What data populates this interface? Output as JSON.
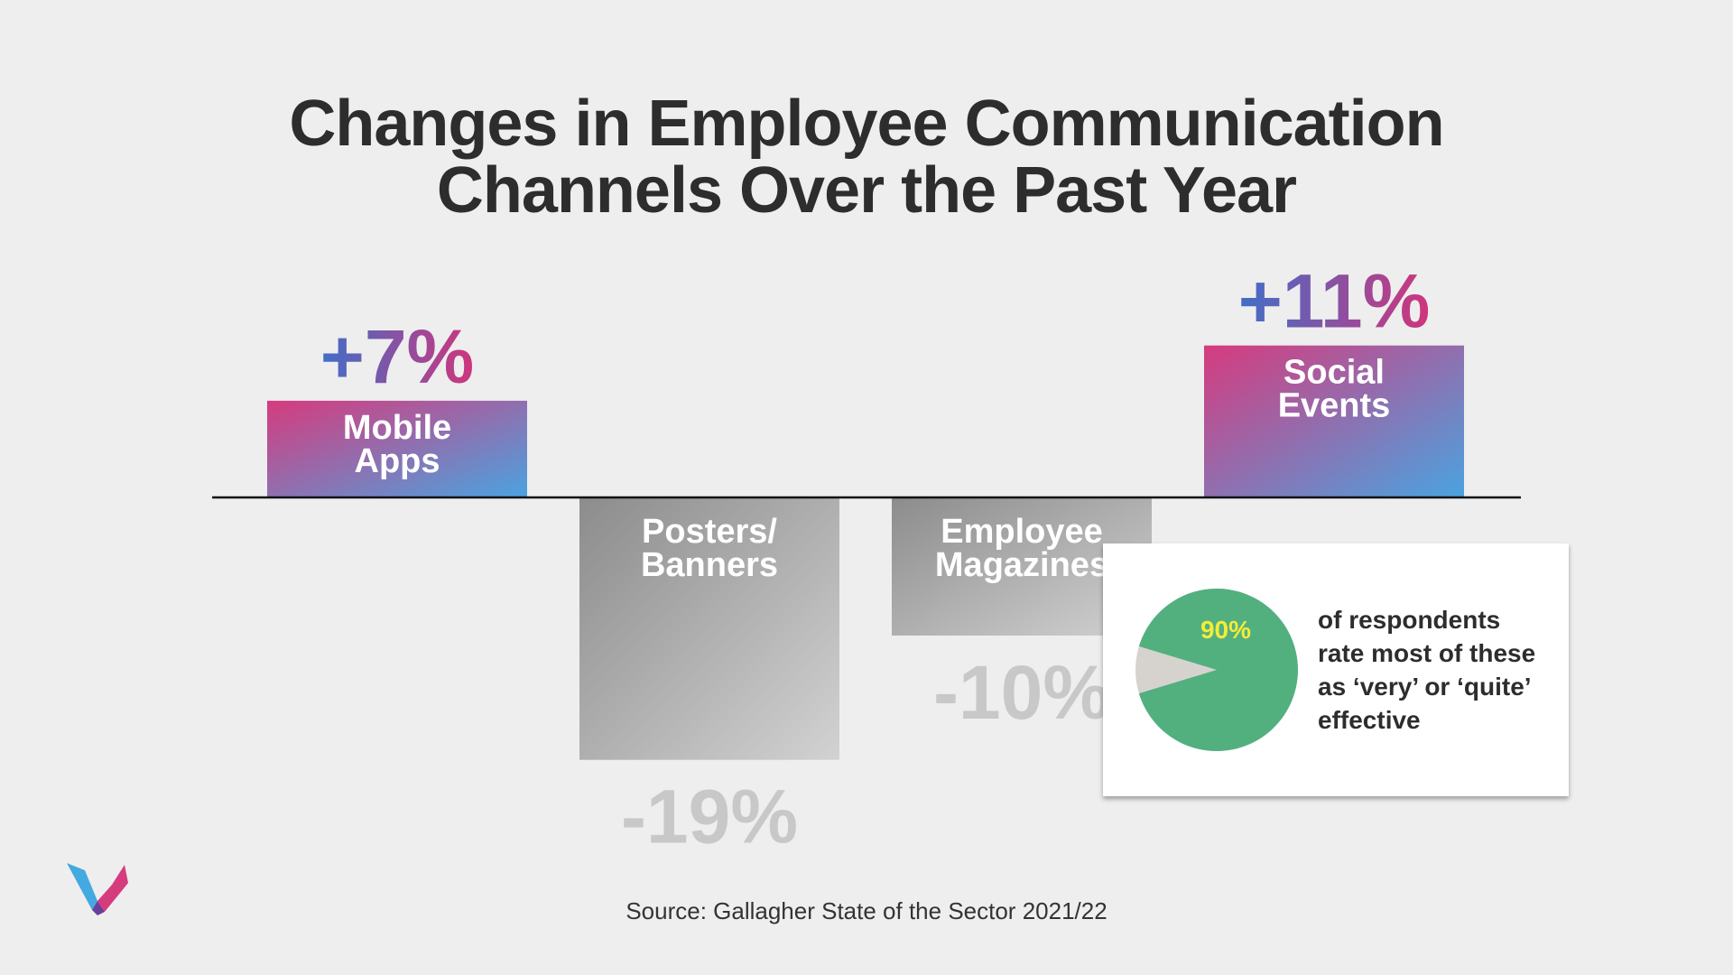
{
  "title": {
    "line1": "Changes in Employee Communication",
    "line2": "Channels Over the Past Year"
  },
  "chart_data": {
    "type": "bar",
    "title": "Changes in Employee Communication Channels Over the Past Year",
    "categories": [
      "Mobile Apps",
      "Posters/ Banners",
      "Employee Magazines",
      "Social Events"
    ],
    "category_lines": [
      [
        "Mobile",
        "Apps"
      ],
      [
        "Posters/",
        "Banners"
      ],
      [
        "Employee",
        "Magazines"
      ],
      [
        "Social",
        "Events"
      ]
    ],
    "values": [
      7,
      -19,
      -10,
      11
    ],
    "value_labels": [
      "+7%",
      "-19%",
      "-10%",
      "+11%"
    ],
    "unit": "%",
    "baseline": 0,
    "xlabel": "",
    "ylabel": "",
    "grid": false,
    "colors": {
      "positive_gradient": [
        "#d63b7e",
        "#4aa3e0"
      ],
      "negative_gradient": [
        "#8c8c8c",
        "#d2d2d2"
      ],
      "positive_label_gradient": [
        "#3f6fc9",
        "#d0357c"
      ],
      "negative_label": "#c8c8c8"
    }
  },
  "callout": {
    "percent": "90%",
    "percent_value": 90,
    "text_lines": [
      "of respondents",
      "rate most of these",
      "as ‘very’ or ‘quite’",
      "effective"
    ],
    "colors": {
      "main": "#52b07f",
      "rest": "#d6d3cf",
      "percent_text": "#f3ec3a"
    }
  },
  "source": "Source: Gallagher State of the Sector 2021/22",
  "logo": {
    "icon": "brand-logo-icon"
  }
}
